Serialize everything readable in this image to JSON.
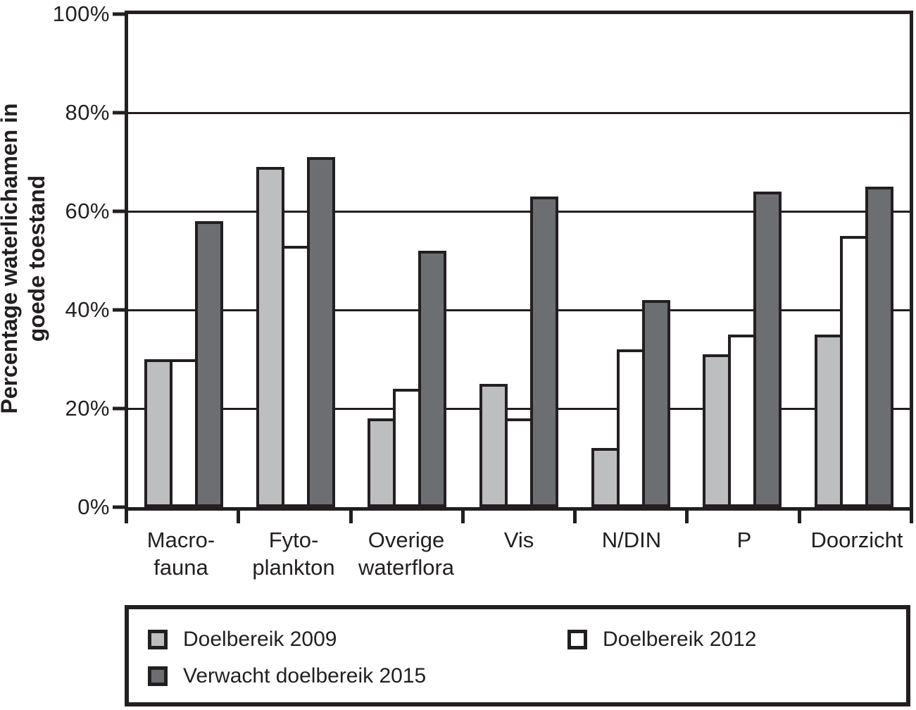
{
  "chart_data": {
    "type": "bar",
    "title": "",
    "y_axis_title_lines": [
      "Percentage waterlichamen in",
      "goede toestand"
    ],
    "ylim": [
      0,
      100
    ],
    "grid": true,
    "grid_values": [
      20,
      40,
      60,
      80
    ],
    "y_ticks": [
      {
        "value": 100,
        "label": "100%"
      },
      {
        "value": 80,
        "label": "80%"
      },
      {
        "value": 60,
        "label": "60%"
      },
      {
        "value": 40,
        "label": "40%"
      },
      {
        "value": 20,
        "label": "20%"
      },
      {
        "value": 0,
        "label": "0%"
      }
    ],
    "categories": [
      {
        "id": "macrofauna",
        "label_lines": [
          "Macro-",
          "fauna"
        ]
      },
      {
        "id": "fytoplankton",
        "label_lines": [
          "Fyto-",
          "plankton"
        ]
      },
      {
        "id": "overige-waterflora",
        "label_lines": [
          "Overige",
          "waterflora"
        ]
      },
      {
        "id": "vis",
        "label_lines": [
          "Vis"
        ]
      },
      {
        "id": "n-din",
        "label_lines": [
          "N/DIN"
        ]
      },
      {
        "id": "p",
        "label_lines": [
          "P"
        ]
      },
      {
        "id": "doorzicht",
        "label_lines": [
          "Doorzicht"
        ]
      }
    ],
    "series": [
      {
        "name": "Doelbereik 2009",
        "color": "#bcbec0",
        "values": [
          30,
          69,
          18,
          25,
          12,
          31,
          35
        ]
      },
      {
        "name": "Doelbereik 2012",
        "color": "#ffffff",
        "values": [
          30,
          53,
          24,
          18,
          32,
          35,
          55
        ]
      },
      {
        "name": "Verwacht doelbereik 2015",
        "color": "#6d6e71",
        "values": [
          58,
          71,
          52,
          63,
          42,
          64,
          65
        ]
      }
    ],
    "legend_position": "bottom-box",
    "legend_layout": [
      {
        "series_index": 0,
        "row": 0,
        "col": 0
      },
      {
        "series_index": 1,
        "row": 0,
        "col": 1
      },
      {
        "series_index": 2,
        "row": 1,
        "col": 0
      }
    ]
  },
  "colors": {
    "ink": "#231f20",
    "background": "#ffffff"
  }
}
